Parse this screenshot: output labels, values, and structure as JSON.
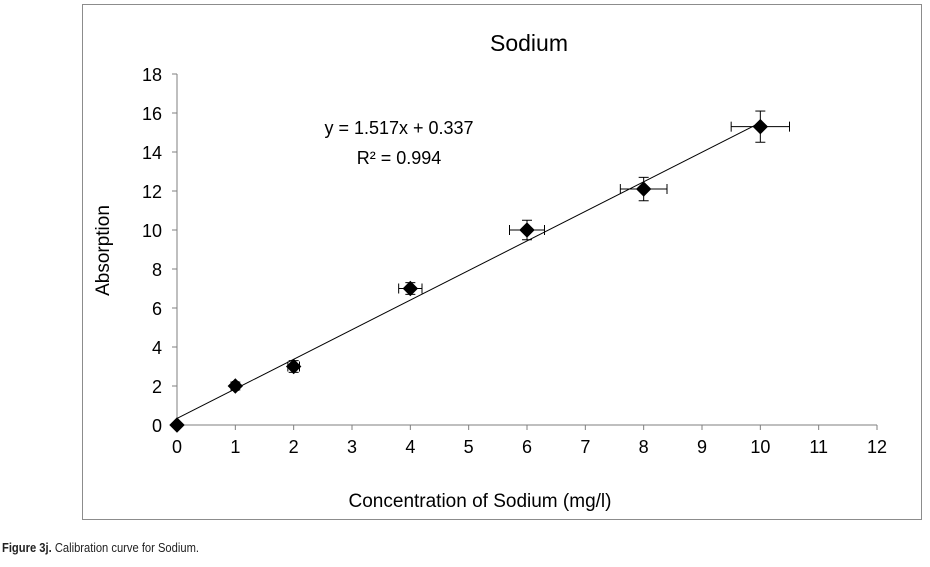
{
  "chart_data": {
    "type": "scatter",
    "title": "Sodium",
    "xlabel": "Concentration of Sodium (mg/l)",
    "ylabel": "Absorption",
    "xlim": [
      0,
      12
    ],
    "ylim": [
      0,
      18
    ],
    "xticks": [
      "0",
      "1",
      "2",
      "3",
      "4",
      "5",
      "6",
      "7",
      "8",
      "9",
      "10",
      "11",
      "12"
    ],
    "yticks": [
      "0",
      "2",
      "4",
      "6",
      "8",
      "10",
      "12",
      "14",
      "16",
      "18"
    ],
    "grid": false,
    "legend": false,
    "points": [
      {
        "x": 0,
        "y": 0,
        "xerr": 0,
        "yerr": 0
      },
      {
        "x": 1,
        "y": 2,
        "xerr": 0.05,
        "yerr": 0.2
      },
      {
        "x": 2,
        "y": 3,
        "xerr": 0.1,
        "yerr": 0.3
      },
      {
        "x": 4,
        "y": 7,
        "xerr": 0.2,
        "yerr": 0.3
      },
      {
        "x": 6,
        "y": 10,
        "xerr": 0.3,
        "yerr": 0.5
      },
      {
        "x": 8,
        "y": 12.1,
        "xerr": 0.4,
        "yerr": 0.6
      },
      {
        "x": 10,
        "y": 15.3,
        "xerr": 0.5,
        "yerr": 0.8
      }
    ],
    "trendline": {
      "slope": 1.517,
      "intercept": 0.337,
      "x_range": [
        0,
        10
      ]
    },
    "equation_text": "y = 1.517x + 0.337",
    "r2_text": "R² = 0.994",
    "marker_color": "#000000"
  },
  "caption": {
    "label": "Figure 3j.",
    "text": "Calibration curve for Sodium."
  }
}
